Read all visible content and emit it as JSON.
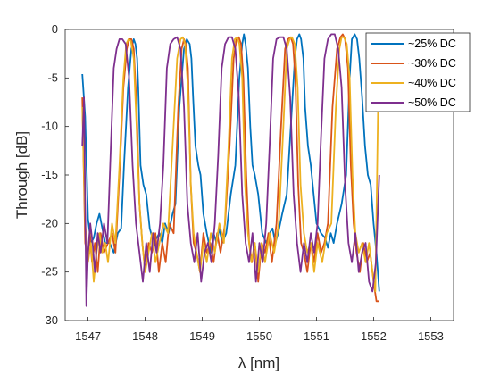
{
  "chart_data": {
    "type": "line",
    "title": "",
    "xlabel": "λ [nm]",
    "ylabel": "Through [dB]",
    "xlim": [
      1546.6,
      1553.4
    ],
    "ylim": [
      -30,
      0
    ],
    "xticks": [
      1547,
      1548,
      1549,
      1550,
      1551,
      1552,
      1553
    ],
    "yticks": [
      0,
      -5,
      -10,
      -15,
      -20,
      -25,
      -30
    ],
    "grid": false,
    "legend_position": "top-right",
    "series": [
      {
        "name": "~25% DC",
        "color": "#0072BD",
        "x": [
          1546.9,
          1546.95,
          1547.0,
          1547.05,
          1547.1,
          1547.15,
          1547.2,
          1547.25,
          1547.3,
          1547.38,
          1547.45,
          1547.52,
          1547.58,
          1547.63,
          1547.7,
          1547.76,
          1547.8,
          1547.83,
          1547.86,
          1547.88,
          1547.92,
          1547.97,
          1548.02,
          1548.08,
          1548.15,
          1548.2,
          1548.25,
          1548.3,
          1548.35,
          1548.41,
          1548.48,
          1548.53,
          1548.6,
          1548.68,
          1548.73,
          1548.78,
          1548.81,
          1548.84,
          1548.88,
          1548.93,
          1548.97,
          1549.02,
          1549.08,
          1549.15,
          1549.2,
          1549.25,
          1549.3,
          1549.35,
          1549.42,
          1549.5,
          1549.58,
          1549.65,
          1549.7,
          1549.73,
          1549.76,
          1549.8,
          1549.84,
          1549.88,
          1549.92,
          1549.98,
          1550.05,
          1550.12,
          1550.18,
          1550.23,
          1550.28,
          1550.33,
          1550.4,
          1550.48,
          1550.55,
          1550.62,
          1550.66,
          1550.7,
          1550.73,
          1550.77,
          1550.8,
          1550.85,
          1550.9,
          1550.95,
          1551.0,
          1551.08,
          1551.15,
          1551.2,
          1551.25,
          1551.3,
          1551.36,
          1551.44,
          1551.52,
          1551.58,
          1551.62,
          1551.67,
          1551.71,
          1551.75,
          1551.8,
          1551.85,
          1551.9,
          1551.95,
          1552.0,
          1552.05,
          1552.1
        ],
        "y": [
          -4.6,
          -9,
          -19.5,
          -22,
          -21.5,
          -20,
          -19,
          -20.5,
          -22,
          -22,
          -23,
          -21,
          -20.5,
          -14,
          -6,
          -2,
          -1,
          -1.5,
          -3,
          -6,
          -14,
          -16,
          -17,
          -20.5,
          -22,
          -21.5,
          -21,
          -22,
          -20,
          -21,
          -19,
          -18,
          -8,
          -2,
          -1,
          -1.5,
          -3,
          -7,
          -12,
          -14,
          -15,
          -19,
          -21,
          -23,
          -21,
          -22,
          -20.5,
          -22,
          -21,
          -17,
          -14,
          -5,
          -1.5,
          -0.5,
          -1.5,
          -4,
          -10,
          -14,
          -15,
          -17,
          -21,
          -22,
          -21,
          -20.5,
          -22,
          -21,
          -19,
          -17,
          -10,
          -3,
          -1,
          -0.5,
          -1,
          -3,
          -8,
          -12,
          -14,
          -17,
          -20,
          -21,
          -21.5,
          -22.5,
          -21,
          -22,
          -20,
          -18,
          -15,
          -5,
          -1,
          -0.5,
          -1,
          -3,
          -7,
          -12,
          -15,
          -16,
          -20,
          -23,
          -27
        ]
      },
      {
        "name": "~30% DC",
        "color": "#D95319",
        "x": [
          1546.9,
          1546.95,
          1547.0,
          1547.03,
          1547.07,
          1547.12,
          1547.17,
          1547.22,
          1547.28,
          1547.35,
          1547.42,
          1547.48,
          1547.55,
          1547.62,
          1547.68,
          1547.72,
          1547.76,
          1547.8,
          1547.85,
          1547.9,
          1547.95,
          1548.0,
          1548.06,
          1548.12,
          1548.18,
          1548.24,
          1548.3,
          1548.36,
          1548.42,
          1548.5,
          1548.58,
          1548.64,
          1548.68,
          1548.71,
          1548.75,
          1548.8,
          1548.85,
          1548.9,
          1548.96,
          1549.02,
          1549.08,
          1549.14,
          1549.2,
          1549.26,
          1549.32,
          1549.4,
          1549.48,
          1549.55,
          1549.6,
          1549.64,
          1549.68,
          1549.72,
          1549.77,
          1549.82,
          1549.87,
          1549.92,
          1549.98,
          1550.04,
          1550.1,
          1550.16,
          1550.22,
          1550.3,
          1550.38,
          1550.45,
          1550.5,
          1550.55,
          1550.59,
          1550.63,
          1550.68,
          1550.73,
          1550.78,
          1550.84,
          1550.9,
          1550.96,
          1551.02,
          1551.08,
          1551.14,
          1551.2,
          1551.28,
          1551.36,
          1551.42,
          1551.46,
          1551.5,
          1551.55,
          1551.6,
          1551.65,
          1551.7,
          1551.76,
          1551.82,
          1551.88,
          1551.94,
          1552.0,
          1552.05,
          1552.1
        ],
        "y": [
          -7,
          -22,
          -23.5,
          -21,
          -24,
          -22,
          -25,
          -21,
          -23,
          -22,
          -21,
          -23,
          -15,
          -6,
          -2,
          -1,
          -1,
          -2,
          -8,
          -18,
          -22,
          -25,
          -22,
          -23,
          -21,
          -25,
          -22,
          -24,
          -20,
          -21,
          -8,
          -2,
          -1,
          -1.5,
          -4,
          -16,
          -22,
          -23,
          -25,
          -21,
          -23,
          -22,
          -24,
          -21,
          -23,
          -20,
          -12,
          -3,
          -1,
          -0.8,
          -1.5,
          -5,
          -15,
          -22,
          -24,
          -22,
          -26,
          -22,
          -23,
          -21,
          -24,
          -20,
          -10,
          -2,
          -1,
          -0.8,
          -1.5,
          -5,
          -16,
          -22,
          -23,
          -25,
          -22,
          -24,
          -21,
          -23,
          -22,
          -20,
          -8,
          -2,
          -0.8,
          -0.5,
          -1,
          -4,
          -14,
          -20,
          -23,
          -25,
          -22,
          -24,
          -23,
          -26,
          -28,
          -28
        ]
      },
      {
        "name": "~40% DC",
        "color": "#EDB120",
        "x": [
          1546.9,
          1546.95,
          1547.0,
          1547.05,
          1547.1,
          1547.15,
          1547.2,
          1547.25,
          1547.3,
          1547.35,
          1547.42,
          1547.48,
          1547.55,
          1547.62,
          1547.67,
          1547.71,
          1547.75,
          1547.8,
          1547.85,
          1547.9,
          1547.95,
          1548.0,
          1548.06,
          1548.12,
          1548.18,
          1548.25,
          1548.32,
          1548.4,
          1548.48,
          1548.56,
          1548.62,
          1548.66,
          1548.7,
          1548.75,
          1548.8,
          1548.85,
          1548.9,
          1548.96,
          1549.02,
          1549.08,
          1549.15,
          1549.22,
          1549.3,
          1549.38,
          1549.46,
          1549.52,
          1549.57,
          1549.61,
          1549.65,
          1549.7,
          1549.75,
          1549.8,
          1549.86,
          1549.92,
          1549.98,
          1550.04,
          1550.1,
          1550.18,
          1550.26,
          1550.34,
          1550.42,
          1550.48,
          1550.53,
          1550.57,
          1550.62,
          1550.67,
          1550.72,
          1550.78,
          1550.84,
          1550.9,
          1550.96,
          1551.02,
          1551.1,
          1551.18,
          1551.26,
          1551.34,
          1551.4,
          1551.44,
          1551.48,
          1551.53,
          1551.58,
          1551.63,
          1551.68,
          1551.74,
          1551.8,
          1551.86,
          1551.92,
          1551.98,
          1552.03,
          1552.08
        ],
        "y": [
          -8,
          -20,
          -24,
          -22,
          -26,
          -23,
          -21,
          -23,
          -22,
          -24,
          -20,
          -22,
          -14,
          -5,
          -1.5,
          -1,
          -1.2,
          -3,
          -10,
          -18,
          -22,
          -25,
          -23,
          -21,
          -24,
          -22,
          -20,
          -21,
          -12,
          -3,
          -1,
          -0.8,
          -1.5,
          -6,
          -16,
          -21,
          -23,
          -25,
          -22,
          -24,
          -21,
          -23,
          -20,
          -22,
          -12,
          -3,
          -1,
          -0.8,
          -1.5,
          -5,
          -16,
          -21,
          -24,
          -22,
          -25,
          -22,
          -24,
          -21,
          -23,
          -20,
          -10,
          -2,
          -1,
          -0.8,
          -1.5,
          -6,
          -16,
          -21,
          -23,
          -22,
          -25,
          -22,
          -24,
          -21,
          -20,
          -8,
          -2,
          -0.8,
          -0.8,
          -1.5,
          -5,
          -15,
          -21,
          -23,
          -22,
          -24,
          -22,
          -25,
          -27,
          -7
        ]
      },
      {
        "name": "~50% DC",
        "color": "#7E2F8E",
        "x": [
          1546.9,
          1546.93,
          1546.97,
          1547.0,
          1547.04,
          1547.08,
          1547.12,
          1547.17,
          1547.22,
          1547.28,
          1547.34,
          1547.4,
          1547.45,
          1547.5,
          1547.55,
          1547.6,
          1547.66,
          1547.72,
          1547.78,
          1547.84,
          1547.9,
          1547.96,
          1548.02,
          1548.08,
          1548.14,
          1548.2,
          1548.26,
          1548.32,
          1548.38,
          1548.44,
          1548.5,
          1548.56,
          1548.62,
          1548.68,
          1548.74,
          1548.8,
          1548.86,
          1548.92,
          1548.98,
          1549.04,
          1549.1,
          1549.16,
          1549.22,
          1549.28,
          1549.34,
          1549.4,
          1549.46,
          1549.52,
          1549.58,
          1549.64,
          1549.7,
          1549.76,
          1549.82,
          1549.88,
          1549.94,
          1550.0,
          1550.06,
          1550.12,
          1550.18,
          1550.24,
          1550.3,
          1550.36,
          1550.42,
          1550.48,
          1550.54,
          1550.6,
          1550.66,
          1550.72,
          1550.78,
          1550.84,
          1550.9,
          1550.96,
          1551.02,
          1551.08,
          1551.14,
          1551.2,
          1551.26,
          1551.32,
          1551.38,
          1551.44,
          1551.5,
          1551.56,
          1551.62,
          1551.68,
          1551.74,
          1551.8,
          1551.86,
          1551.92,
          1551.98,
          1552.04,
          1552.1
        ],
        "y": [
          -12,
          -7,
          -28.5,
          -23,
          -20,
          -22,
          -25,
          -21,
          -23,
          -20,
          -22,
          -12,
          -4,
          -2,
          -1,
          -1,
          -1.5,
          -5,
          -14,
          -20,
          -23,
          -26,
          -22,
          -25,
          -21,
          -23,
          -20,
          -14,
          -4,
          -1.5,
          -1,
          -0.8,
          -2,
          -8,
          -18,
          -22,
          -24,
          -21,
          -26,
          -23,
          -22,
          -24,
          -20,
          -13,
          -4,
          -1.5,
          -0.8,
          -0.8,
          -2,
          -7,
          -17,
          -22,
          -24,
          -21,
          -26,
          -22,
          -24,
          -20,
          -12,
          -3,
          -1,
          -0.8,
          -0.8,
          -2,
          -7,
          -17,
          -22,
          -25,
          -22,
          -24,
          -21,
          -23,
          -20,
          -11,
          -3,
          -1,
          -0.5,
          -0.5,
          -2,
          -6,
          -16,
          -22,
          -24,
          -21,
          -25,
          -23,
          -22,
          -26,
          -27,
          -24,
          -15
        ]
      }
    ]
  }
}
